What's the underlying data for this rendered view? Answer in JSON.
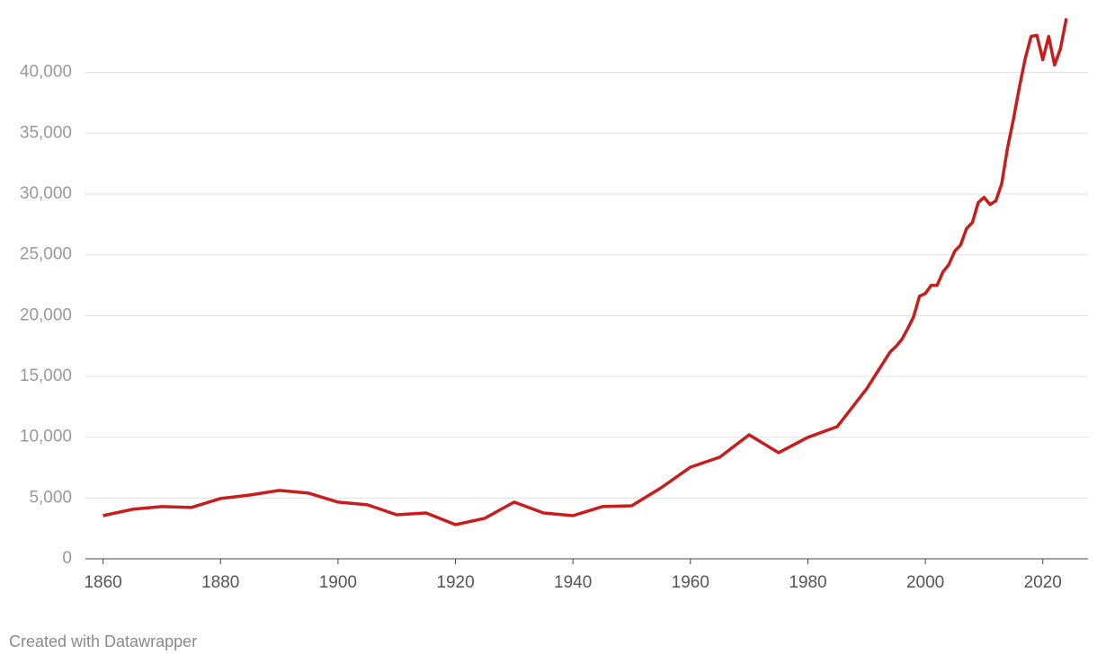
{
  "chart_data": {
    "type": "line",
    "footer": "Created with Datawrapper",
    "x": [
      1860,
      1865,
      1870,
      1875,
      1880,
      1885,
      1890,
      1895,
      1900,
      1905,
      1910,
      1915,
      1920,
      1925,
      1930,
      1935,
      1940,
      1945,
      1950,
      1955,
      1960,
      1965,
      1970,
      1975,
      1980,
      1985,
      1990,
      1994,
      1995,
      1996,
      1997,
      1998,
      1999,
      2000,
      2001,
      2002,
      2003,
      2004,
      2005,
      2006,
      2007,
      2008,
      2009,
      2010,
      2011,
      2012,
      2013,
      2014,
      2015,
      2016,
      2017,
      2018,
      2019,
      2020,
      2021,
      2022,
      2023,
      2024
    ],
    "values": [
      3550,
      4070,
      4290,
      4220,
      4960,
      5250,
      5620,
      5400,
      4660,
      4440,
      3620,
      3770,
      2810,
      3330,
      4660,
      3770,
      3550,
      4290,
      4360,
      5840,
      7540,
      8360,
      10200,
      8730,
      9990,
      10870,
      13980,
      17010,
      17460,
      18050,
      18930,
      19900,
      21600,
      21820,
      22490,
      22490,
      23600,
      24190,
      25300,
      25810,
      27150,
      27660,
      29290,
      29730,
      29140,
      29440,
      30840,
      33800,
      36170,
      38760,
      41120,
      42970,
      43050,
      41050,
      42970,
      40610,
      41940,
      44450
    ],
    "color": "#c71e1d",
    "xlim": [
      1857,
      2028
    ],
    "xticks": [
      1860,
      1880,
      1900,
      1920,
      1940,
      1960,
      1980,
      2000,
      2020
    ],
    "ylim": [
      0,
      45000
    ],
    "yticks": [
      0,
      {
        "value": 5000,
        "label": "5,000"
      },
      {
        "value": 10000,
        "label": "10,000"
      },
      {
        "value": 15000,
        "label": "15,000"
      },
      {
        "value": 20000,
        "label": "20,000"
      },
      {
        "value": 25000,
        "label": "25,000"
      },
      {
        "value": 30000,
        "label": "30,000"
      },
      {
        "value": 35000,
        "label": "35,000"
      },
      {
        "value": 40000,
        "label": "40,000"
      }
    ],
    "grid": true
  }
}
